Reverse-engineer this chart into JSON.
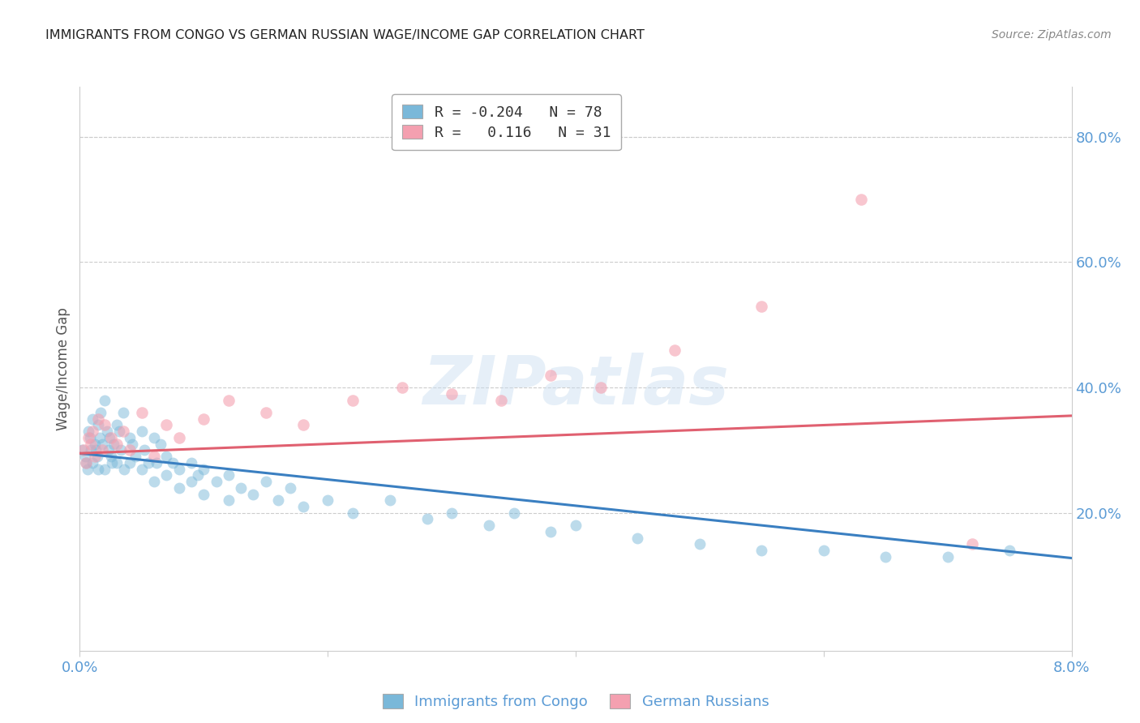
{
  "title": "IMMIGRANTS FROM CONGO VS GERMAN RUSSIAN WAGE/INCOME GAP CORRELATION CHART",
  "source": "Source: ZipAtlas.com",
  "ylabel": "Wage/Income Gap",
  "ytick_values": [
    0.2,
    0.4,
    0.6,
    0.8
  ],
  "xlim": [
    0.0,
    0.08
  ],
  "ylim": [
    -0.02,
    0.88
  ],
  "color_blue": "#7ab8d9",
  "color_pink": "#f4a0b0",
  "line_color_blue": "#3a7fc1",
  "line_color_pink": "#e06070",
  "watermark_text": "ZIPatlas",
  "legend_line1": "R = -0.204   N = 78",
  "legend_line2": "R =   0.116   N = 31",
  "legend_labels": [
    "Immigrants from Congo",
    "German Russians"
  ],
  "background_color": "#ffffff",
  "grid_color": "#cccccc",
  "tick_color": "#5b9bd5",
  "congo_x": [
    0.0002,
    0.0004,
    0.0005,
    0.0006,
    0.0007,
    0.0008,
    0.0009,
    0.001,
    0.001,
    0.0012,
    0.0013,
    0.0014,
    0.0015,
    0.0015,
    0.0016,
    0.0017,
    0.0018,
    0.002,
    0.002,
    0.0022,
    0.0023,
    0.0024,
    0.0025,
    0.0026,
    0.0027,
    0.003,
    0.003,
    0.0032,
    0.0033,
    0.0035,
    0.0036,
    0.004,
    0.004,
    0.0042,
    0.0045,
    0.005,
    0.005,
    0.0052,
    0.0055,
    0.006,
    0.006,
    0.0062,
    0.0065,
    0.007,
    0.007,
    0.0075,
    0.008,
    0.008,
    0.009,
    0.009,
    0.0095,
    0.01,
    0.01,
    0.011,
    0.012,
    0.012,
    0.013,
    0.014,
    0.015,
    0.016,
    0.017,
    0.018,
    0.02,
    0.022,
    0.025,
    0.028,
    0.03,
    0.033,
    0.035,
    0.038,
    0.04,
    0.045,
    0.05,
    0.055,
    0.06,
    0.065,
    0.07,
    0.075
  ],
  "congo_y": [
    0.3,
    0.29,
    0.28,
    0.27,
    0.33,
    0.32,
    0.3,
    0.35,
    0.28,
    0.31,
    0.3,
    0.29,
    0.34,
    0.27,
    0.32,
    0.36,
    0.31,
    0.38,
    0.27,
    0.33,
    0.3,
    0.32,
    0.29,
    0.28,
    0.31,
    0.34,
    0.28,
    0.33,
    0.3,
    0.36,
    0.27,
    0.32,
    0.28,
    0.31,
    0.29,
    0.33,
    0.27,
    0.3,
    0.28,
    0.32,
    0.25,
    0.28,
    0.31,
    0.26,
    0.29,
    0.28,
    0.27,
    0.24,
    0.28,
    0.25,
    0.26,
    0.27,
    0.23,
    0.25,
    0.26,
    0.22,
    0.24,
    0.23,
    0.25,
    0.22,
    0.24,
    0.21,
    0.22,
    0.2,
    0.22,
    0.19,
    0.2,
    0.18,
    0.2,
    0.17,
    0.18,
    0.16,
    0.15,
    0.14,
    0.14,
    0.13,
    0.13,
    0.14
  ],
  "german_x": [
    0.0003,
    0.0005,
    0.0007,
    0.0009,
    0.001,
    0.0012,
    0.0015,
    0.0018,
    0.002,
    0.0025,
    0.003,
    0.0035,
    0.004,
    0.005,
    0.006,
    0.007,
    0.008,
    0.01,
    0.012,
    0.015,
    0.018,
    0.022,
    0.026,
    0.03,
    0.034,
    0.038,
    0.042,
    0.048,
    0.055,
    0.063,
    0.072
  ],
  "german_y": [
    0.3,
    0.28,
    0.32,
    0.31,
    0.33,
    0.29,
    0.35,
    0.3,
    0.34,
    0.32,
    0.31,
    0.33,
    0.3,
    0.36,
    0.29,
    0.34,
    0.32,
    0.35,
    0.38,
    0.36,
    0.34,
    0.38,
    0.4,
    0.39,
    0.38,
    0.42,
    0.4,
    0.46,
    0.53,
    0.7,
    0.15
  ]
}
